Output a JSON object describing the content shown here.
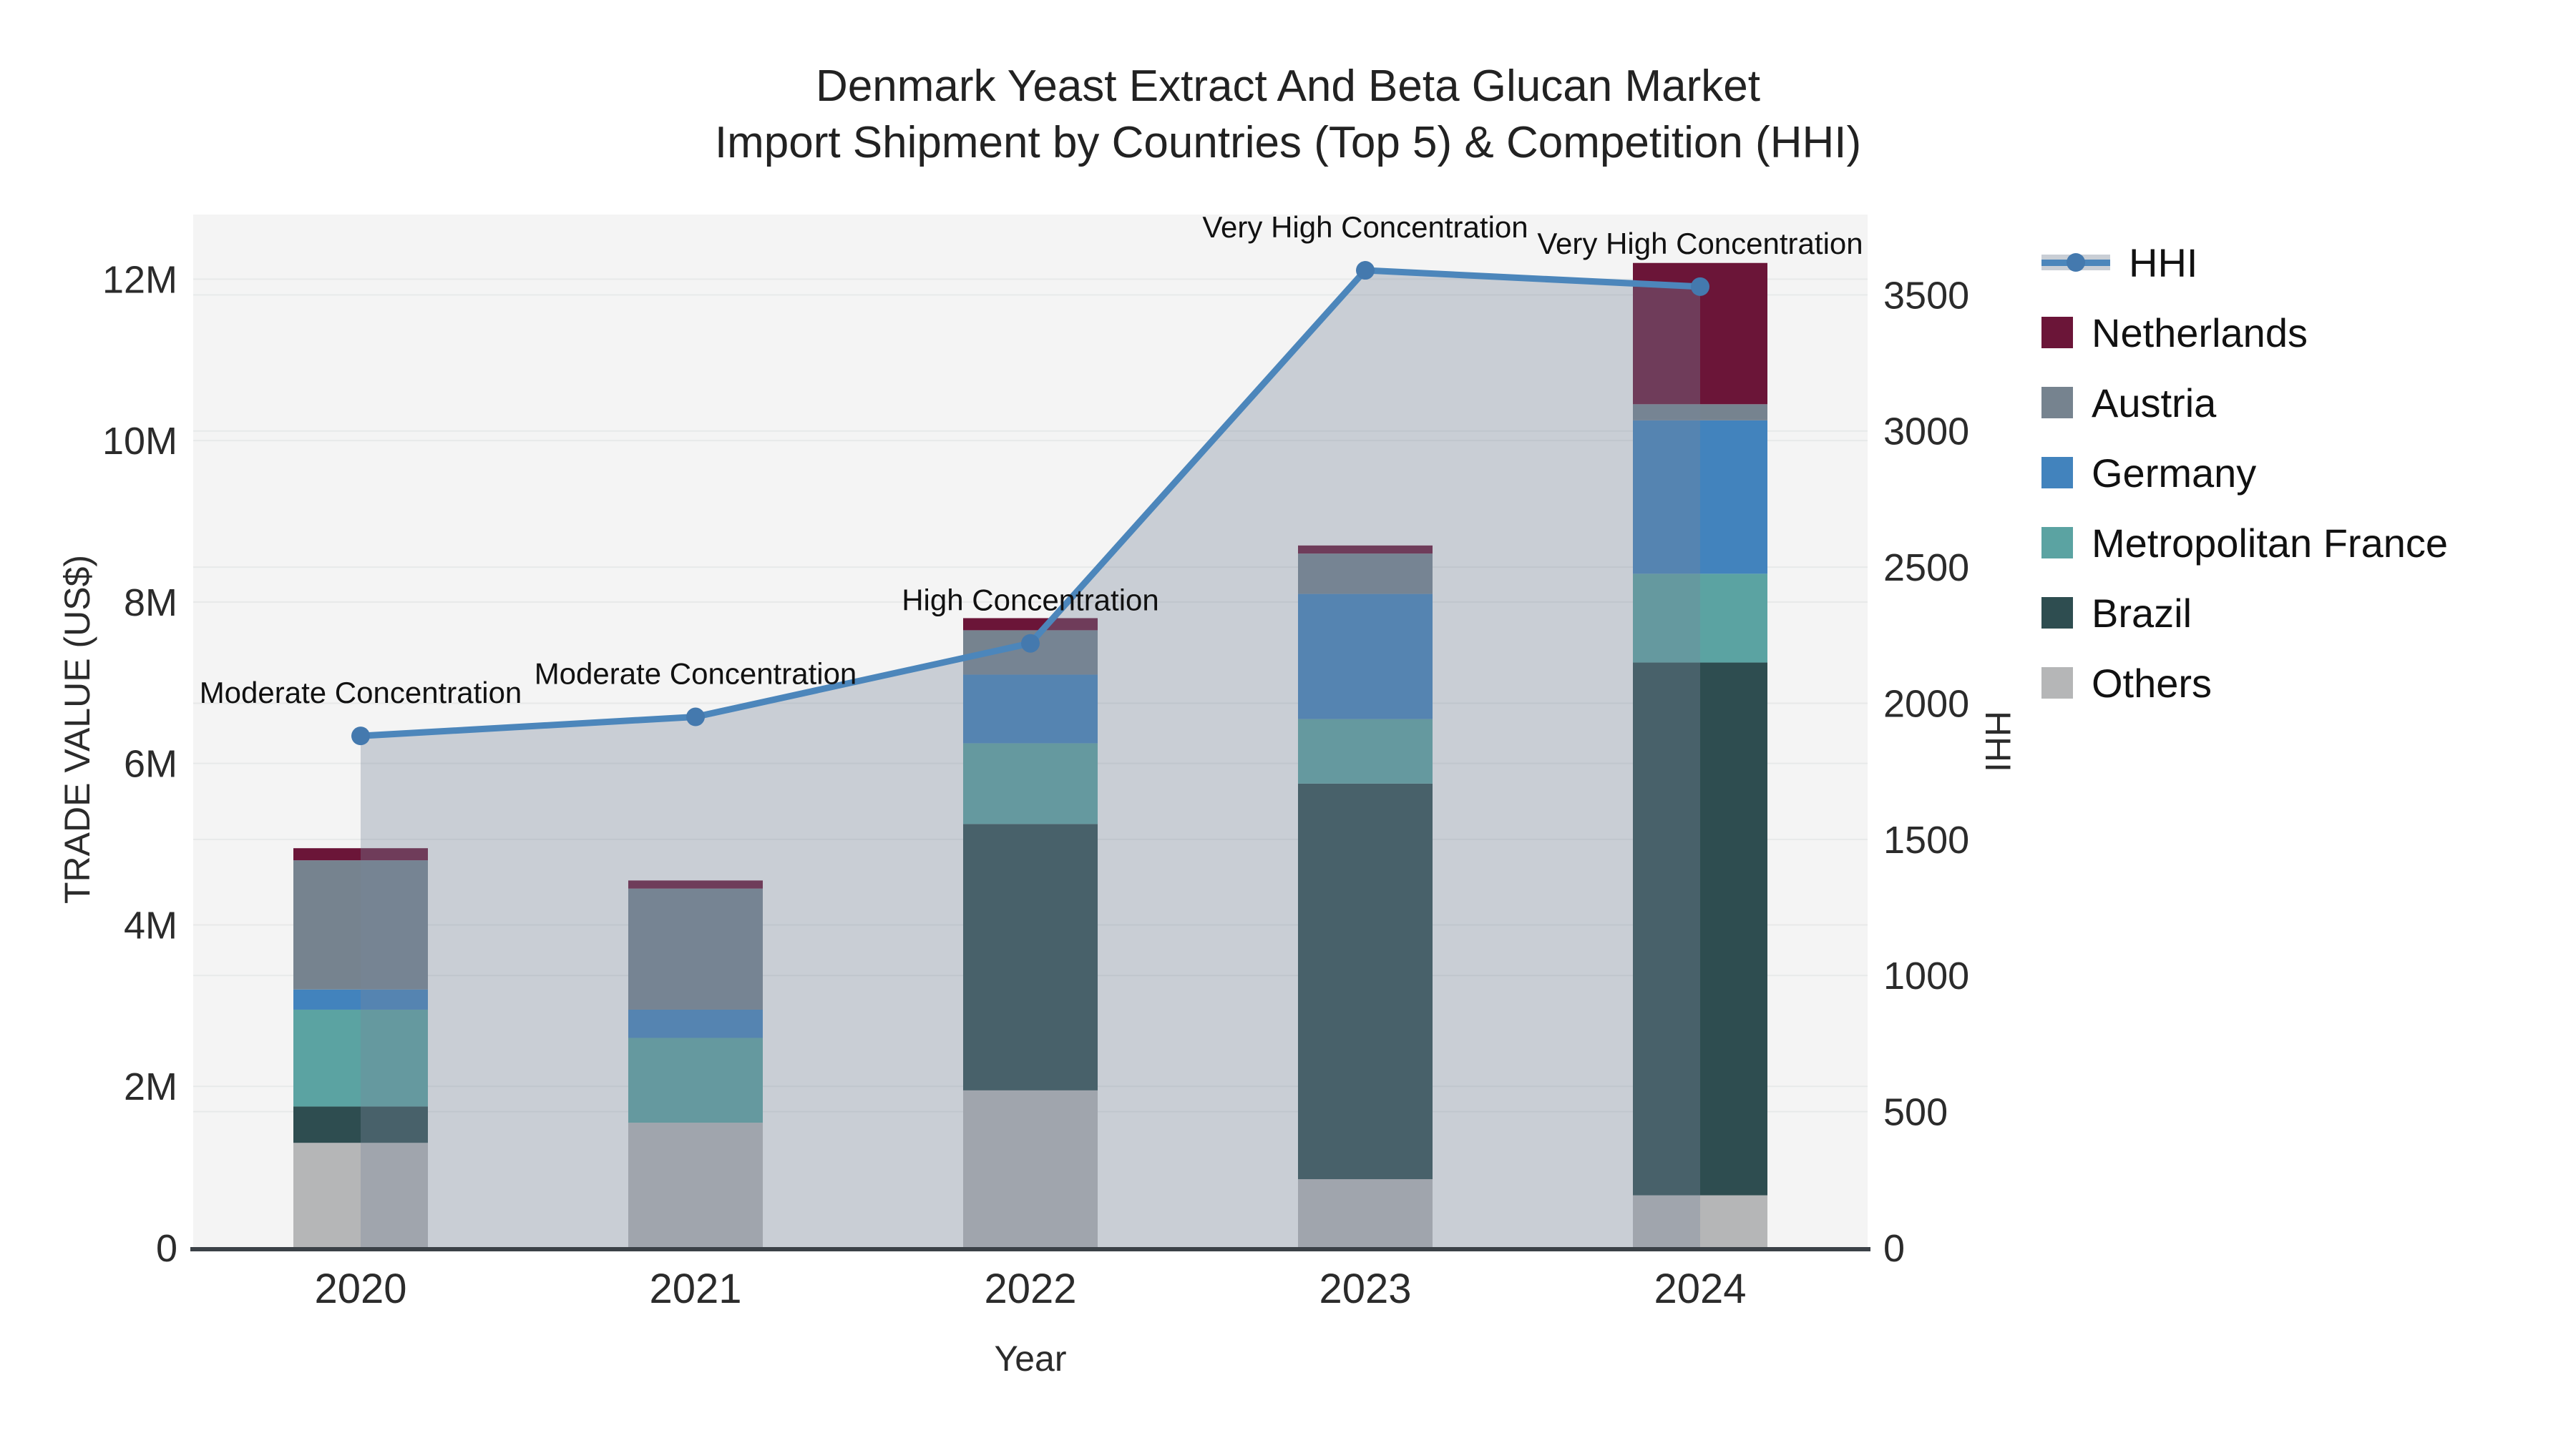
{
  "title": {
    "line1": "Denmark Yeast Extract And Beta Glucan Market",
    "line2": "Import Shipment by Countries (Top 5) & Competition (HHI)"
  },
  "axes": {
    "x": {
      "title": "Year",
      "categories": [
        "2020",
        "2021",
        "2022",
        "2023",
        "2024"
      ]
    },
    "y_left": {
      "title": "TRADE VALUE (US$)",
      "tick_labels": [
        "0",
        "2M",
        "4M",
        "6M",
        "8M",
        "10M",
        "12M"
      ],
      "tick_values": [
        0,
        2,
        4,
        6,
        8,
        10,
        12
      ],
      "range": [
        0,
        12.8
      ]
    },
    "y_right": {
      "title": "HHI",
      "tick_labels": [
        "0",
        "500",
        "1000",
        "1500",
        "2000",
        "2500",
        "3000",
        "3500"
      ],
      "tick_values": [
        0,
        500,
        1000,
        1500,
        2000,
        2500,
        3000,
        3500
      ],
      "range": [
        0,
        3795
      ]
    }
  },
  "chart_data": {
    "type": "bar+line",
    "categories": [
      "2020",
      "2021",
      "2022",
      "2023",
      "2024"
    ],
    "bar_unit": "millions US$",
    "stack_order_bottom_to_top": [
      "Others",
      "Brazil",
      "Metropolitan France",
      "Germany",
      "Austria",
      "Netherlands"
    ],
    "series": [
      {
        "name": "Others",
        "color": "#b5b6b7",
        "values": [
          1.3,
          1.55,
          1.95,
          0.85,
          0.65
        ]
      },
      {
        "name": "Brazil",
        "color": "#2e4d50",
        "values": [
          0.45,
          0.0,
          3.3,
          4.9,
          6.6
        ]
      },
      {
        "name": "Metropolitan France",
        "color": "#5ba3a2",
        "values": [
          1.2,
          1.05,
          1.0,
          0.8,
          1.1
        ]
      },
      {
        "name": "Germany",
        "color": "#4283bd",
        "values": [
          0.25,
          0.35,
          0.85,
          1.55,
          1.9
        ]
      },
      {
        "name": "Austria",
        "color": "#76838f",
        "values": [
          1.6,
          1.5,
          0.55,
          0.5,
          0.2
        ]
      },
      {
        "name": "Netherlands",
        "color": "#6b1538",
        "values": [
          0.15,
          0.1,
          0.15,
          0.1,
          1.75
        ]
      }
    ],
    "bar_totals": [
      4.95,
      4.55,
      7.8,
      8.7,
      12.2
    ],
    "line": {
      "name": "HHI",
      "color": "#4c86bb",
      "marker_color": "#4479ae",
      "fill_color": "rgba(120,135,155,0.35)",
      "values": [
        1880,
        1950,
        2220,
        3590,
        3530
      ],
      "annotations": [
        "Moderate Concentration",
        "Moderate Concentration",
        "High Concentration",
        "Very High Concentration",
        "Very High Concentration"
      ]
    }
  },
  "legend": {
    "items": [
      {
        "label": "HHI",
        "type": "line",
        "color": "#4c86bb"
      },
      {
        "label": "Netherlands",
        "type": "square",
        "color": "#6b1538"
      },
      {
        "label": "Austria",
        "type": "square",
        "color": "#76838f"
      },
      {
        "label": "Germany",
        "type": "square",
        "color": "#4283bd"
      },
      {
        "label": "Metropolitan France",
        "type": "square",
        "color": "#5ba3a2"
      },
      {
        "label": "Brazil",
        "type": "square",
        "color": "#2e4d50"
      },
      {
        "label": "Others",
        "type": "square",
        "color": "#b5b6b7"
      }
    ]
  },
  "colors": {
    "plot_bg": "#f4f4f4",
    "grid": "#e7e9e9",
    "axis_line": "#3b4147",
    "text": "#2b2b2b"
  }
}
